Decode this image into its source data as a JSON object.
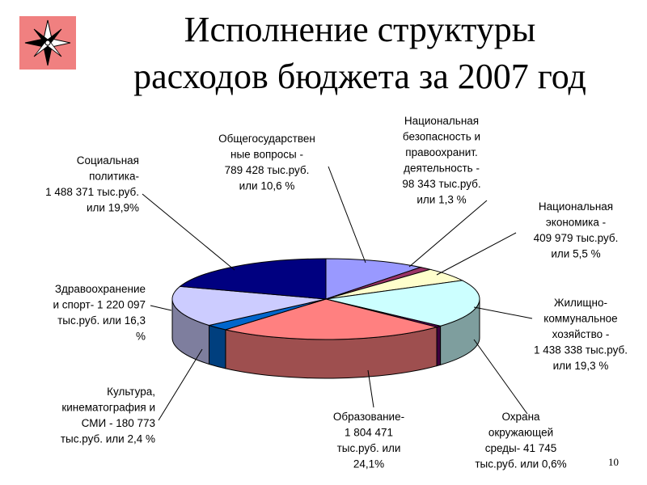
{
  "slide": {
    "title_line1": "Исполнение структуры",
    "title_line2": "расходов бюджета за 2007 год",
    "page_number": "10",
    "logo_icon": "compass-rose-icon"
  },
  "chart_data": {
    "type": "pie",
    "title": "Исполнение структуры расходов бюджета за 2007 год",
    "unit": "тыс.руб.",
    "slices": [
      {
        "name": "Общегосударственные вопросы",
        "value": 789428,
        "percent": 10.6,
        "color": "#9999ff",
        "label_lines": [
          "Общегосударствен",
          "ные вопросы -",
          "789 428 тыс.руб.",
          "или 10,6 %"
        ]
      },
      {
        "name": "Национальная безопасность и правоохранит. деятельность",
        "value": 98343,
        "percent": 1.3,
        "color": "#993366",
        "label_lines": [
          "Национальная",
          "безопасность и",
          "правоохранит.",
          "деятельность -",
          "98 343 тыс.руб.",
          "или 1,3 %"
        ]
      },
      {
        "name": "Национальная экономика",
        "value": 409979,
        "percent": 5.5,
        "color": "#ffffcc",
        "label_lines": [
          "Национальная",
          "экономика -",
          "409 979 тыс.руб.",
          "или 5,5 %"
        ]
      },
      {
        "name": "Жилищно-коммунальное хозяйство",
        "value": 1438338,
        "percent": 19.3,
        "color": "#ccffff",
        "label_lines": [
          "Жилищно-",
          "коммунальное",
          "хозяйство -",
          "1 438 338 тыс.руб.",
          "или 19,3 %"
        ]
      },
      {
        "name": "Охрана окружающей среды",
        "value": 41745,
        "percent": 0.6,
        "color": "#660066",
        "label_lines": [
          "Охрана",
          "окружающей",
          "среды- 41 745",
          "тыс.руб. или 0,6%"
        ]
      },
      {
        "name": "Образование",
        "value": 1804471,
        "percent": 24.1,
        "color": "#ff8080",
        "label_lines": [
          "Образование-",
          "1 804 471",
          "тыс.руб. или",
          "24,1%"
        ]
      },
      {
        "name": "Культура, кинематография и СМИ",
        "value": 180773,
        "percent": 2.4,
        "color": "#0066cc",
        "label_lines": [
          "Культура,",
          "кинематография и",
          "СМИ - 180 773",
          "тыс.руб. или 2,4 %"
        ]
      },
      {
        "name": "Здравоохранение и спорт",
        "value": 1220097,
        "percent": 16.3,
        "color": "#ccccff",
        "label_lines": [
          "Здравоохранение",
          "и спорт- 1 220 097",
          "тыс.руб. или  16,3",
          "%"
        ]
      },
      {
        "name": "Социальная политика",
        "value": 1488371,
        "percent": 19.9,
        "color": "#000080",
        "label_lines": [
          "Социальная",
          "политика-",
          "1 488 371 тыс.руб.",
          "или  19,9%"
        ]
      }
    ],
    "legend": "none"
  }
}
